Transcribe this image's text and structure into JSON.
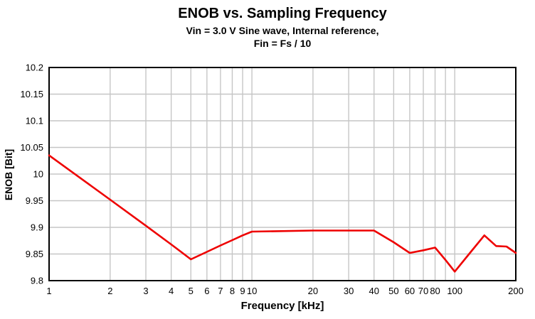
{
  "chart_data": {
    "type": "line",
    "title": "ENOB vs. Sampling Frequency",
    "subtitle1": "Vin = 3.0 V Sine wave, Internal reference,",
    "subtitle2": "Fin = Fs / 10",
    "xlabel": "Frequency [kHz]",
    "ylabel": "ENOB [Bit]",
    "x_scale": "log",
    "xlim": [
      1,
      200
    ],
    "ylim": [
      9.8,
      10.2
    ],
    "grid": true,
    "legend": "none",
    "line_color": "#ee0000",
    "grid_color": "#c6c6c6",
    "axis_color": "#000000",
    "x_ticks": [
      {
        "value": 1,
        "label": "1"
      },
      {
        "value": 2,
        "label": "2"
      },
      {
        "value": 3,
        "label": "3"
      },
      {
        "value": 4,
        "label": "4"
      },
      {
        "value": 5,
        "label": "5"
      },
      {
        "value": 6,
        "label": "6"
      },
      {
        "value": 7,
        "label": "7"
      },
      {
        "value": 8,
        "label": "8"
      },
      {
        "value": 9,
        "label": "9"
      },
      {
        "value": 10,
        "label": "10"
      },
      {
        "value": 20,
        "label": "20"
      },
      {
        "value": 30,
        "label": "30"
      },
      {
        "value": 40,
        "label": "40"
      },
      {
        "value": 50,
        "label": "50"
      },
      {
        "value": 60,
        "label": "60"
      },
      {
        "value": 70,
        "label": "70"
      },
      {
        "value": 80,
        "label": "80"
      },
      {
        "value": 100,
        "label": "100"
      },
      {
        "value": 200,
        "label": "200"
      }
    ],
    "x_gridlines": [
      2,
      3,
      4,
      5,
      6,
      7,
      8,
      9,
      10,
      20,
      30,
      40,
      50,
      60,
      70,
      80,
      90,
      100
    ],
    "y_ticks": [
      {
        "value": 9.8,
        "label": "9.8"
      },
      {
        "value": 9.85,
        "label": "9.85"
      },
      {
        "value": 9.9,
        "label": "9.9"
      },
      {
        "value": 9.95,
        "label": "9.95"
      },
      {
        "value": 10,
        "label": "10"
      },
      {
        "value": 10.05,
        "label": "10.05"
      },
      {
        "value": 10.1,
        "label": "10.1"
      },
      {
        "value": 10.15,
        "label": "10.15"
      },
      {
        "value": 10.2,
        "label": "10.2"
      }
    ],
    "y_gridlines": [
      9.85,
      9.9,
      9.95,
      10,
      10.05,
      10.1,
      10.15
    ],
    "series": [
      {
        "name": "ENOB",
        "x": [
          1,
          2,
          3,
          4,
          5,
          6,
          7,
          8,
          9,
          10,
          20,
          30,
          40,
          50,
          60,
          70,
          80,
          90,
          100,
          120,
          140,
          160,
          180,
          200
        ],
        "y": [
          10.035,
          9.952,
          9.903,
          9.868,
          9.84,
          9.854,
          9.866,
          9.876,
          9.885,
          9.892,
          9.894,
          9.894,
          9.894,
          9.872,
          9.852,
          9.857,
          9.862,
          9.839,
          9.817,
          9.854,
          9.885,
          9.865,
          9.864,
          9.852
        ]
      }
    ]
  }
}
